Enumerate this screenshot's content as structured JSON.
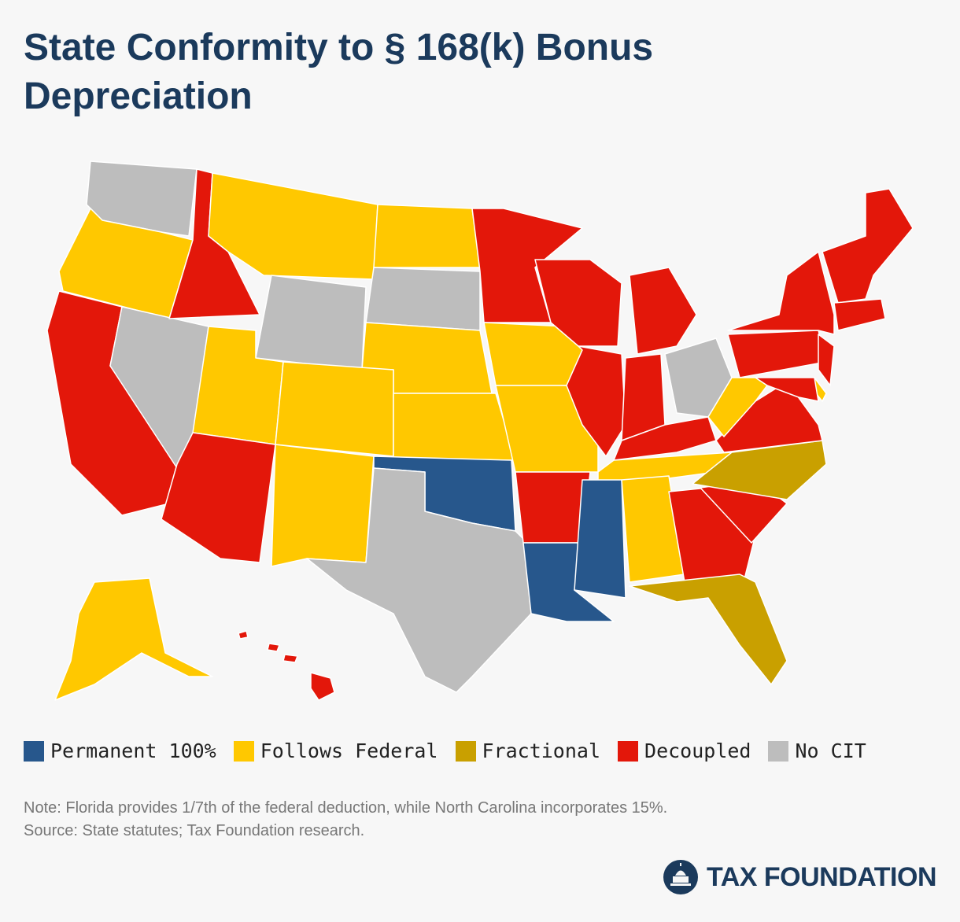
{
  "title": "State Conformity to § 168(k) Bonus Depreciation",
  "legend": [
    {
      "label": "Permanent 100%",
      "color": "#27578c"
    },
    {
      "label": "Follows Federal",
      "color": "#ffc800"
    },
    {
      "label": "Fractional",
      "color": "#c9a000"
    },
    {
      "label": "Decoupled",
      "color": "#e3170a"
    },
    {
      "label": "No CIT",
      "color": "#bdbdbd"
    }
  ],
  "note": "Note: Florida provides 1/7th of the federal deduction, while North Carolina incorporates 15%.",
  "source": "Source: State statutes; Tax Foundation research.",
  "logo": "TAX FOUNDATION"
}
